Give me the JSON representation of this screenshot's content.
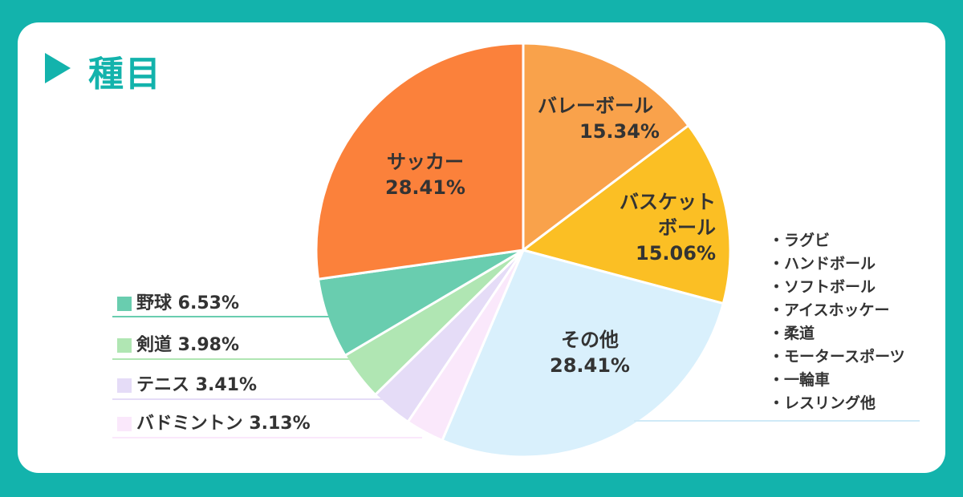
{
  "header": {
    "title": "種目"
  },
  "chart_data": {
    "type": "pie",
    "title": "種目",
    "start": "top",
    "direction": "clockwise",
    "slices": [
      {
        "label": "バレーボール",
        "value": 15.34,
        "display": "15.34%",
        "color": "#f9a24b"
      },
      {
        "label": "バスケットボール",
        "value": 15.06,
        "display": "15.06%",
        "color": "#fbbf24"
      },
      {
        "label": "その他",
        "value": 28.41,
        "display": "28.41%",
        "color": "#d9f0fc"
      },
      {
        "label": "バドミントン",
        "value": 3.13,
        "display": "3.13%",
        "color": "#fae8fb"
      },
      {
        "label": "テニス",
        "value": 3.41,
        "display": "3.41%",
        "color": "#e5dcf7"
      },
      {
        "label": "剣道",
        "value": 3.98,
        "display": "3.98%",
        "color": "#b0e6b3"
      },
      {
        "label": "野球",
        "value": 6.53,
        "display": "6.53%",
        "color": "#69cdaf"
      },
      {
        "label": "サッカー",
        "value": 28.41,
        "display": "28.41%",
        "color": "#fb813b"
      }
    ],
    "inside_labels": {
      "volleyball": {
        "lines": [
          "バレーボール",
          "15.34%"
        ]
      },
      "basketball": {
        "lines": [
          "バスケット",
          "ボール",
          "15.06%"
        ]
      },
      "others": {
        "lines": [
          "その他",
          "28.41%"
        ]
      },
      "soccer": {
        "lines": [
          "サッカー",
          "28.41%"
        ]
      }
    },
    "legend": [
      {
        "text": "野球 6.53%",
        "color": "#69cdaf"
      },
      {
        "text": "剣道 3.98%",
        "color": "#b0e6b3"
      },
      {
        "text": "テニス 3.41%",
        "color": "#e5dcf7"
      },
      {
        "text": "バドミントン 3.13%",
        "color": "#fae8fb"
      }
    ],
    "others_breakdown": [
      "ラグビ",
      "ハンドボール",
      "ソフトボール",
      "アイスホッケー",
      "柔道",
      "モータースポーツ",
      "一輪車",
      "レスリング他"
    ],
    "legend_placement": "left"
  }
}
